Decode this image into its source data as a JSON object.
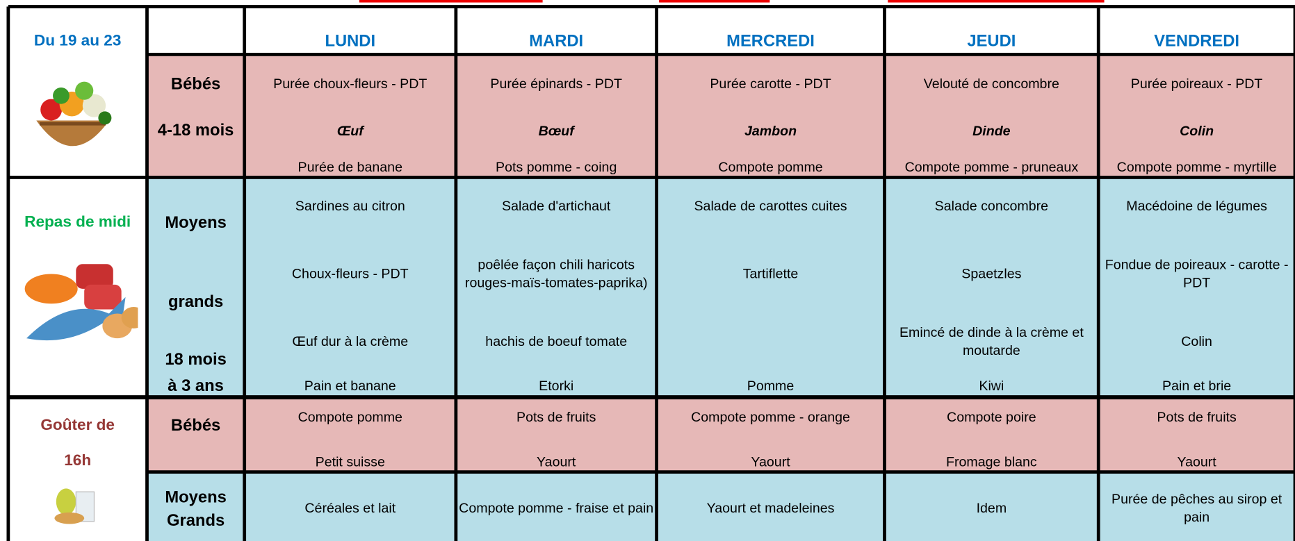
{
  "header": {
    "week": "Du 19 au 23",
    "days": [
      "LUNDI",
      "MARDI",
      "MERCREDI",
      "JEUDI",
      "VENDREDI"
    ]
  },
  "sections": [
    {
      "group": [
        "Bébés",
        "4-18 mois"
      ],
      "cells": [
        [
          "Purée choux-fleurs - PDT",
          "Œuf",
          "Purée de banane"
        ],
        [
          "Purée épinards - PDT",
          "Bœuf",
          "Pots pomme - coing"
        ],
        [
          "Purée carotte - PDT",
          "Jambon",
          "Compote pomme"
        ],
        [
          "Velouté de concombre",
          "Dinde",
          "Compote pomme - pruneaux"
        ],
        [
          "Purée poireaux - PDT",
          "Colin",
          "Compote pomme - myrtille"
        ]
      ]
    },
    {
      "label": [
        "Repas de midi"
      ],
      "group": [
        "Moyens",
        "grands",
        "18 mois",
        "à 3 ans"
      ],
      "cells": [
        [
          "Sardines au citron",
          "Choux-fleurs - PDT",
          "Œuf dur à la crème",
          "Pain et banane"
        ],
        [
          "Salade d'artichaut",
          "poêlée façon chili haricots rouges-maïs-tomates-paprika)",
          "hachis de boeuf tomate",
          "Etorki"
        ],
        [
          "Salade de carottes cuites",
          "Tartiflette",
          null,
          "Pomme"
        ],
        [
          "Salade concombre",
          "Spaetzles",
          "Emincé de dinde à la crème et moutarde",
          "Kiwi"
        ],
        [
          "Macédoine de légumes",
          "Fondue de poireaux - carotte - PDT",
          "Colin",
          "Pain et brie"
        ]
      ]
    },
    {
      "label": [
        "Goûter de",
        "16h"
      ],
      "group": [
        "Bébés"
      ],
      "cells": [
        [
          "Compote pomme",
          "Petit suisse"
        ],
        [
          "Pots de fruits",
          "Yaourt"
        ],
        [
          "Compote pomme - orange",
          "Yaourt"
        ],
        [
          "Compote poire",
          "Fromage blanc"
        ],
        [
          "Pots de fruits",
          "Yaourt"
        ]
      ]
    },
    {
      "group": [
        "Moyens",
        "Grands"
      ],
      "cells": [
        [
          "Céréales et lait"
        ],
        [
          "Compote pomme - fraise et pain"
        ],
        [
          "Yaourt et madeleines"
        ],
        [
          "Idem"
        ],
        [
          "Purée de pêches au sirop et pain"
        ]
      ]
    }
  ]
}
